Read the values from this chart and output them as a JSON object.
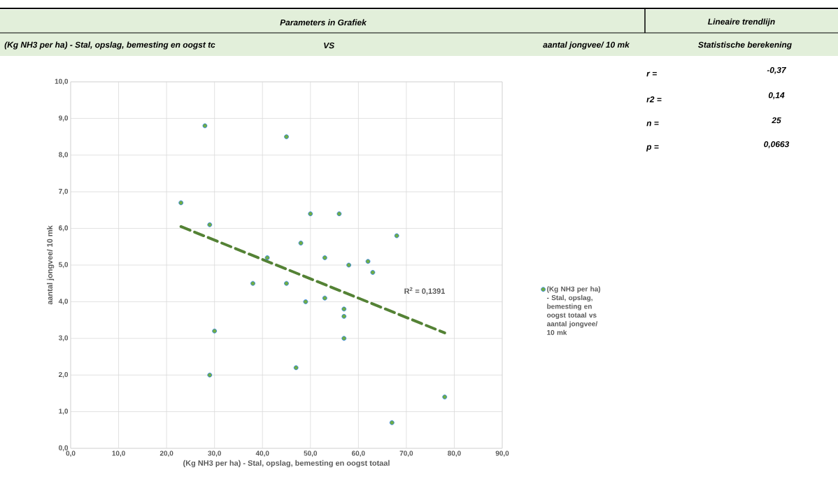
{
  "chart_data": {
    "type": "scatter",
    "title": "Parameters in Grafiek",
    "xlabel": "(Kg NH3 per ha) - Stal, opslag, bemesting en oogst totaal",
    "ylabel": "aantal jongvee/ 10 mk",
    "annotations": [
      "Lineaire trendlijn",
      "(Kg NH3 per ha) - Stal, opslag, bemesting en oogst tc",
      "VS",
      "aantal jongvee/ 10 mk",
      "Statistische berekening",
      "r =",
      "-0,37",
      "r2 =",
      "0,14",
      "n =",
      "25",
      "p =",
      "0,0663",
      "R$^{2}$ = 0,1391"
    ],
    "series": [
      {
        "name": "(Kg NH3 per ha) - Stal, opslag, bemesting en oogst totaal vs aantal jongvee/ 10 mk",
        "color": "#70ad47",
        "marker": "circle",
        "x": [
          28,
          45,
          23,
          29,
          50,
          56,
          68,
          48,
          41,
          53,
          62,
          58,
          63,
          38,
          45,
          49,
          53,
          57,
          57,
          57,
          30,
          47,
          29,
          78,
          67
        ],
        "values": [
          8.8,
          8.5,
          6.7,
          6.1,
          6.4,
          6.4,
          5.8,
          5.6,
          5.2,
          5.2,
          5.1,
          5.0,
          4.8,
          4.5,
          4.5,
          4.0,
          4.1,
          3.8,
          3.6,
          3.0,
          3.2,
          2.2,
          2.0,
          1.4,
          0.7
        ]
      },
      {
        "type": "line",
        "color": "#548235",
        "line_style": "dashed",
        "marker": "none",
        "x": [
          23,
          78
        ],
        "values": [
          6.05,
          3.15
        ]
      }
    ],
    "xlim": [
      0,
      90
    ],
    "ylim": [
      0,
      10
    ],
    "xticks": [
      {
        "value": 0,
        "label": "0,0"
      },
      {
        "value": 10,
        "label": "10,0"
      },
      {
        "value": 20,
        "label": "20,0"
      },
      {
        "value": 30,
        "label": "30,0"
      },
      {
        "value": 40,
        "label": "40,0"
      },
      {
        "value": 50,
        "label": "50,0"
      },
      {
        "value": 60,
        "label": "60,0"
      },
      {
        "value": 70,
        "label": "70,0"
      },
      {
        "value": 80,
        "label": "80,0"
      },
      {
        "value": 90,
        "label": "90,0"
      }
    ],
    "yticks": [
      {
        "value": 0,
        "label": "0,0"
      },
      {
        "value": 1,
        "label": "1,0"
      },
      {
        "value": 2,
        "label": "2,0"
      },
      {
        "value": 3,
        "label": "3,0"
      },
      {
        "value": 4,
        "label": "4,0"
      },
      {
        "value": 5,
        "label": "5,0"
      },
      {
        "value": 6,
        "label": "6,0"
      },
      {
        "value": 7,
        "label": "7,0"
      },
      {
        "value": 8,
        "label": "8,0"
      },
      {
        "value": 9,
        "label": "9,0"
      },
      {
        "value": 10,
        "label": "10,0"
      }
    ],
    "grid": true,
    "legend": "right"
  }
}
